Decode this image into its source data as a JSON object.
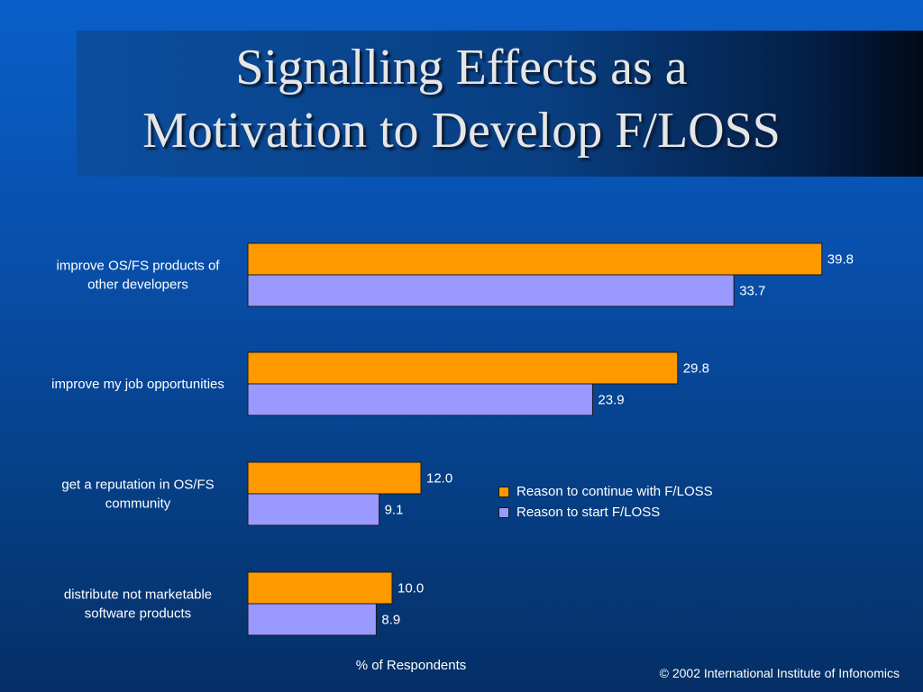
{
  "slide": {
    "title_line1": "Signalling Effects as a",
    "title_line2": "Motivation to Develop F/LOSS",
    "copyright": "© 2002 International Institute of Infonomics"
  },
  "chart_data": {
    "type": "bar",
    "orientation": "horizontal",
    "categories": [
      [
        "improve OS/FS products of",
        "other developers"
      ],
      [
        "improve my job opportunities"
      ],
      [
        "get a reputation in OS/FS",
        "community"
      ],
      [
        "distribute not marketable",
        "software products"
      ]
    ],
    "series": [
      {
        "name": "Reason to continue with F/LOSS",
        "values": [
          39.8,
          29.8,
          12.0,
          10.0
        ],
        "value_labels": [
          "39.8",
          "29.8",
          "12.0",
          "10.0"
        ],
        "color": "#ff9900"
      },
      {
        "name": "Reason to start F/LOSS",
        "values": [
          33.7,
          23.9,
          9.1,
          8.9
        ],
        "value_labels": [
          "33.7",
          "23.9",
          "9.1",
          "8.9"
        ],
        "color": "#9999ff"
      }
    ],
    "xlabel": "% of Respondents",
    "xlim": [
      0,
      40
    ],
    "grid": false,
    "legend_position": "center-right"
  }
}
